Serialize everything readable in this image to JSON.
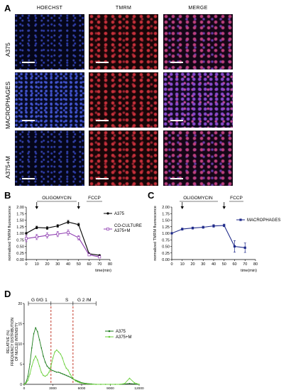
{
  "panel_a": {
    "letter": "A",
    "columns": [
      "HOECHST",
      "TMRM",
      "MERGE"
    ],
    "rows": [
      "A375",
      "MACROPHAGES",
      "A375+M"
    ]
  },
  "panel_b": {
    "letter": "B",
    "annotations": [
      "OLIGOMYCIN",
      "FCCP"
    ],
    "legend_co": [
      "CO-CULTURE",
      "A375+M"
    ]
  },
  "panel_c": {
    "letter": "C",
    "annotations": [
      "OLIGOMYCIN",
      "FCCP"
    ]
  },
  "panel_d": {
    "letter": "D",
    "phase_labels": [
      "G 0/G 1",
      "S",
      "G 2 /M"
    ],
    "ylabel_lines": [
      "RELATIVE (%)",
      "FREQUENCY DISTRIBUTION",
      "OF NUCLEI INTENSITY"
    ]
  },
  "colors": {
    "a375": "#000000",
    "coculture": "#8e3bb0",
    "macrophages": "#1f2a8a",
    "d_a375": "#1a7a1a",
    "d_a375m": "#6bd13c",
    "dashed": "#c23a2a"
  },
  "chart_data": [
    {
      "type": "line",
      "panel": "B",
      "x": [
        0,
        10,
        20,
        30,
        40,
        50,
        60,
        70
      ],
      "xlabel": "time(min)",
      "ylabel": "normalized TMRM fluorescence",
      "xlim": [
        0,
        80
      ],
      "ylim": [
        0,
        2.0
      ],
      "xticks": [
        0,
        10,
        20,
        30,
        40,
        50,
        60,
        70,
        80
      ],
      "yticks": [
        "0.00",
        "0.25",
        "0.50",
        "0.75",
        "1.00",
        "1.25",
        "1.50",
        "1.75",
        "2.00"
      ],
      "series": [
        {
          "name": "A375",
          "values": [
            1.0,
            1.22,
            1.2,
            1.28,
            1.43,
            1.33,
            0.22,
            0.16
          ],
          "err": [
            0.03,
            0.05,
            0.05,
            0.05,
            0.06,
            0.05,
            0.03,
            0.02
          ]
        },
        {
          "name": "CO-CULTURE A375+M",
          "values": [
            0.8,
            0.86,
            0.92,
            0.97,
            1.03,
            0.83,
            0.18,
            0.1
          ],
          "err": [
            0.12,
            0.1,
            0.1,
            0.1,
            0.1,
            0.08,
            0.03,
            0.02
          ]
        }
      ]
    },
    {
      "type": "line",
      "panel": "C",
      "x": [
        0,
        10,
        20,
        30,
        40,
        50,
        60,
        70
      ],
      "xlabel": "time(min)",
      "ylabel": "normalized TMRM fluorescence",
      "xlim": [
        0,
        80
      ],
      "ylim": [
        0,
        2.0
      ],
      "xticks": [
        0,
        10,
        20,
        30,
        40,
        50,
        60,
        70,
        80
      ],
      "yticks": [
        "0.00",
        "0.25",
        "0.50",
        "0.75",
        "1.00",
        "1.25",
        "1.50",
        "1.75",
        "2.00"
      ],
      "series": [
        {
          "name": "MACROPHAGES",
          "values": [
            1.0,
            1.16,
            1.2,
            1.23,
            1.28,
            1.3,
            0.5,
            0.45
          ],
          "err": [
            0.02,
            0.04,
            0.04,
            0.04,
            0.05,
            0.05,
            0.22,
            0.18
          ]
        }
      ]
    },
    {
      "type": "line",
      "panel": "D",
      "xlim": [
        0,
        12000
      ],
      "ylim": [
        0,
        20
      ],
      "xticks": [
        0,
        3000,
        6000,
        9000,
        12000
      ],
      "yticks": [
        0,
        5,
        10,
        15,
        20
      ],
      "dashed_x": [
        2800,
        5100
      ],
      "series": [
        {
          "name": "A375",
          "x": [
            0,
            200,
            400,
            600,
            800,
            1000,
            1200,
            1400,
            1600,
            1800,
            2000,
            2200,
            2400,
            2600,
            2800,
            3000,
            3200,
            3400,
            3600,
            3800,
            4000,
            4200,
            4400,
            4600,
            4800,
            5000,
            5200,
            5400,
            5600,
            5800,
            6000,
            6500,
            7000,
            7500,
            8000,
            8500,
            9000,
            9500,
            10000,
            10500,
            11000,
            11500,
            12000
          ],
          "values": [
            0,
            0.5,
            2,
            5,
            9,
            12.5,
            14,
            13,
            11,
            9,
            7,
            5.5,
            4.5,
            4,
            3.6,
            3.4,
            3.2,
            3,
            3,
            2.8,
            2.6,
            2.4,
            2.2,
            2,
            1.8,
            1.5,
            1.2,
            1,
            0.8,
            0.6,
            0.4,
            0.2,
            0.1,
            0,
            0,
            0,
            0,
            0,
            0,
            0.1,
            0.2,
            0.1,
            0
          ]
        },
        {
          "name": "A375+M",
          "x": [
            0,
            200,
            400,
            600,
            800,
            1000,
            1200,
            1400,
            1600,
            1800,
            2000,
            2200,
            2400,
            2600,
            2800,
            3000,
            3200,
            3400,
            3600,
            3800,
            4000,
            4200,
            4400,
            4600,
            4800,
            5000,
            5200,
            5400,
            5600,
            5800,
            6000,
            6500,
            7000,
            7500,
            8000,
            8500,
            9000,
            9500,
            10000,
            10500,
            11000,
            11500,
            12000
          ],
          "values": [
            0,
            0.3,
            1,
            2.5,
            4.5,
            6,
            7,
            6,
            4.5,
            3,
            2.2,
            2,
            2.3,
            3,
            4.5,
            6.5,
            8,
            8.5,
            8,
            7.5,
            6.5,
            5,
            4,
            3.5,
            2.5,
            1.8,
            1.2,
            0.8,
            0.6,
            0.4,
            0.3,
            0.1,
            0,
            0,
            0,
            0,
            0,
            0,
            0,
            0.2,
            1.5,
            0.4,
            0
          ]
        }
      ]
    }
  ]
}
